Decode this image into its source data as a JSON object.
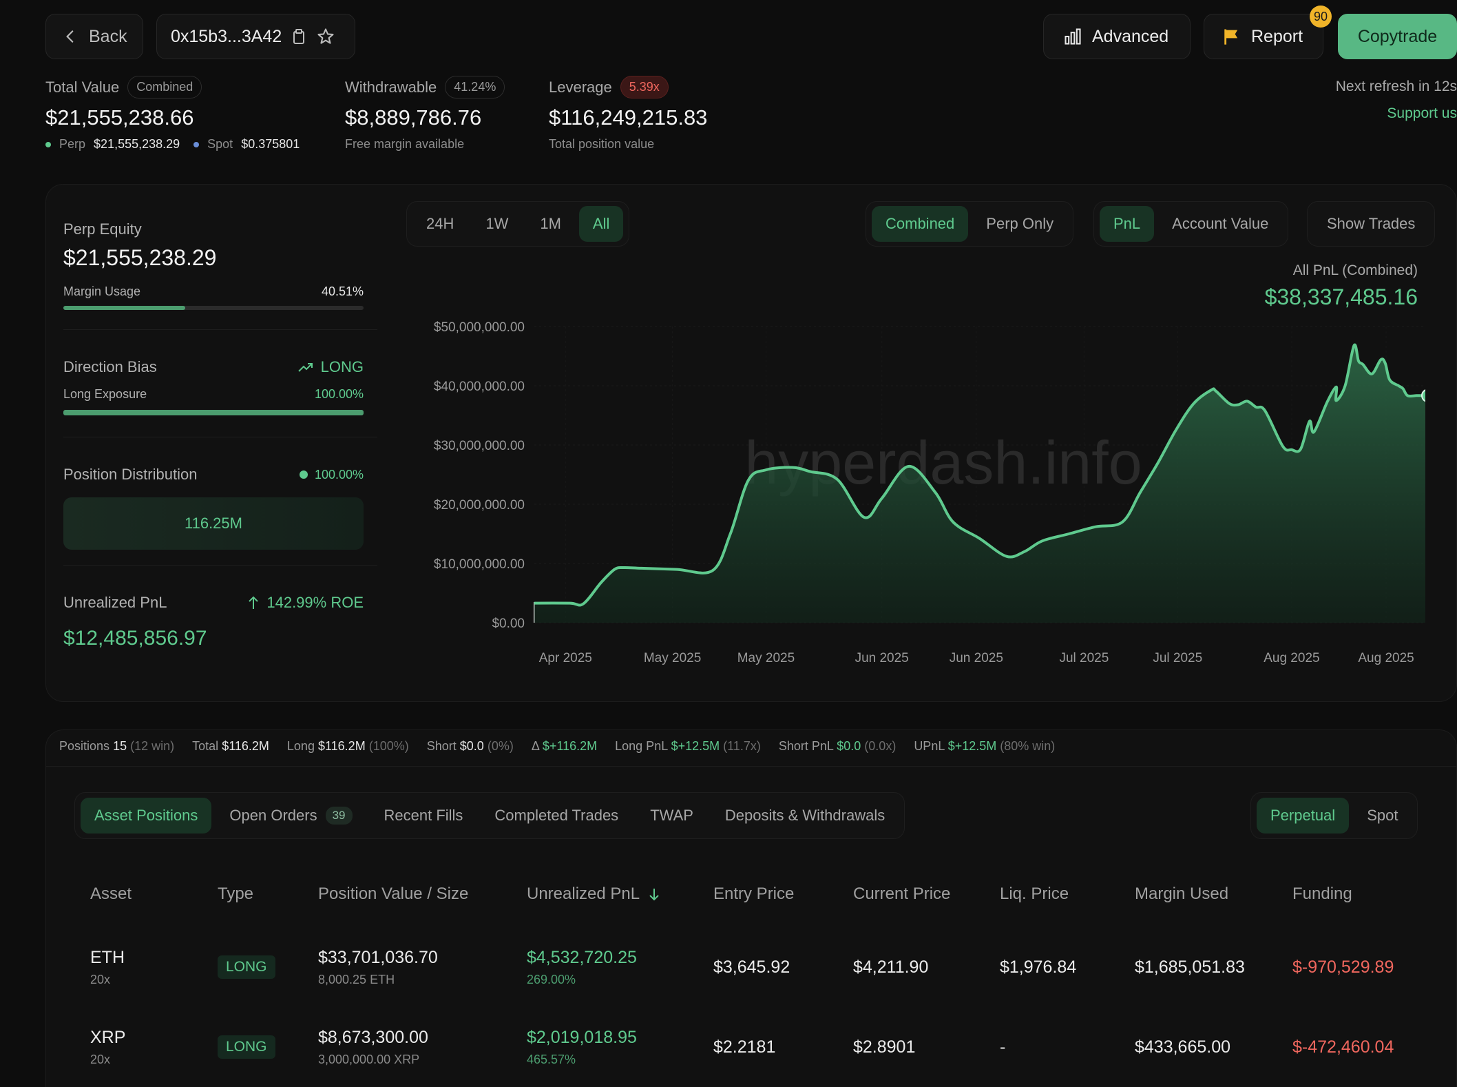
{
  "header": {
    "back_label": "Back",
    "address": "0x15b3...3A42",
    "advanced_label": "Advanced",
    "report_label": "Report",
    "report_count": "90",
    "copytrade_label": "Copytrade",
    "next_refresh": "Next refresh in 12s",
    "support": "Support us"
  },
  "summary": {
    "total_value_label": "Total Value",
    "total_value_tag": "Combined",
    "total_value": "$21,555,238.66",
    "perp_label": "Perp",
    "perp_value": "$21,555,238.29",
    "spot_label": "Spot",
    "spot_value": "$0.375801",
    "withdrawable_label": "Withdrawable",
    "withdrawable_tag": "41.24%",
    "withdrawable_value": "$8,889,786.76",
    "withdrawable_sub": "Free margin available",
    "leverage_label": "Leverage",
    "leverage_tag": "5.39x",
    "leverage_value": "$116,249,215.83",
    "leverage_sub": "Total position value"
  },
  "left": {
    "perp_equity_label": "Perp Equity",
    "perp_equity": "$21,555,238.29",
    "margin_usage_label": "Margin Usage",
    "margin_usage": "40.51%",
    "margin_usage_fraction": 0.4051,
    "direction_label": "Direction Bias",
    "direction_value": "LONG",
    "long_exposure_label": "Long Exposure",
    "long_exposure": "100.00%",
    "long_exposure_fraction": 1.0,
    "distribution_label": "Position Distribution",
    "distribution_pct": "100.00%",
    "distribution_value": "116.25M",
    "upnl_label": "Unrealized PnL",
    "upnl_roe": "142.99% ROE",
    "upnl_value": "$12,485,856.97"
  },
  "chart_controls": {
    "ranges": [
      "24H",
      "1W",
      "1M",
      "All"
    ],
    "active_range": "All",
    "modes": [
      "Combined",
      "Perp Only"
    ],
    "active_mode": "Combined",
    "metrics": [
      "PnL",
      "Account Value"
    ],
    "active_metric": "PnL",
    "show_trades": "Show Trades"
  },
  "chart_header": {
    "label": "All PnL (Combined)",
    "value": "$38,337,485.16",
    "watermark": "hyperdash.info"
  },
  "chart_data": {
    "type": "area",
    "ylim": [
      0,
      50000000
    ],
    "yticks": [
      "$0.00",
      "$10,000,000.00",
      "$20,000,000.00",
      "$30,000,000.00",
      "$40,000,000.00",
      "$50,000,000.00"
    ],
    "xticks": [
      "Apr 2025",
      "May 2025",
      "May 2025",
      "Jun 2025",
      "Jun 2025",
      "Jul 2025",
      "Jul 2025",
      "Aug 2025",
      "Aug 2025"
    ],
    "line_color": "#5fca8e",
    "series": [
      {
        "x": [
          0,
          0.04,
          0.055,
          0.075,
          0.09,
          0.1,
          0.12,
          0.16,
          0.2,
          0.22,
          0.24,
          0.26,
          0.29,
          0.31,
          0.34,
          0.37,
          0.39,
          0.42,
          0.45,
          0.47,
          0.5,
          0.53,
          0.55,
          0.57,
          0.6,
          0.63,
          0.66,
          0.68,
          0.7,
          0.72,
          0.74,
          0.76,
          0.765,
          0.78,
          0.79,
          0.8,
          0.81,
          0.82,
          0.84,
          0.85,
          0.86,
          0.87,
          0.875,
          0.89,
          0.9,
          0.9,
          0.91,
          0.92,
          0.925,
          0.93,
          0.94,
          0.95,
          0.955,
          0.96,
          0.97,
          0.975,
          0.98,
          0.99,
          0.995,
          1.0
        ],
        "y": [
          3300000,
          3300000,
          3200000,
          6800000,
          9000000,
          9300000,
          9200000,
          9000000,
          8800000,
          15000000,
          24000000,
          25800000,
          26200000,
          25500000,
          24200000,
          17800000,
          21000000,
          26400000,
          22000000,
          17000000,
          14200000,
          11200000,
          12000000,
          13800000,
          15000000,
          16200000,
          17000000,
          22000000,
          27000000,
          32500000,
          37000000,
          39300000,
          39100000,
          37000000,
          36800000,
          37400000,
          36400000,
          35800000,
          29800000,
          29200000,
          29300000,
          34000000,
          32200000,
          37300000,
          39800000,
          37500000,
          40000000,
          46800000,
          44200000,
          43600000,
          42000000,
          44400000,
          43800000,
          41000000,
          40000000,
          39500000,
          38337485,
          38337485,
          38337485,
          38337485
        ]
      }
    ]
  },
  "positions_stats": {
    "positions_label": "Positions",
    "positions_value": "15",
    "positions_sub": "(12 win)",
    "total_label": "Total",
    "total_value": "$116.2M",
    "long_label": "Long",
    "long_value": "$116.2M",
    "long_sub": "(100%)",
    "short_label": "Short",
    "short_value": "$0.0",
    "short_sub": "(0%)",
    "delta_label": "Δ",
    "delta_value": "$+116.2M",
    "long_pnl_label": "Long PnL",
    "long_pnl_value": "$+12.5M",
    "long_pnl_sub": "(11.7x)",
    "short_pnl_label": "Short PnL",
    "short_pnl_value": "$0.0",
    "short_pnl_sub": "(0.0x)",
    "upnl_label": "UPnL",
    "upnl_value": "$+12.5M",
    "upnl_sub": "(80% win)"
  },
  "tabs": {
    "items": [
      "Asset Positions",
      "Open Orders",
      "Recent Fills",
      "Completed Trades",
      "TWAP",
      "Deposits & Withdrawals"
    ],
    "open_orders_count": "39",
    "active": "Asset Positions",
    "market_types": [
      "Perpetual",
      "Spot"
    ],
    "active_market": "Perpetual"
  },
  "table": {
    "columns": [
      "Asset",
      "Type",
      "Position Value / Size",
      "Unrealized PnL",
      "Entry Price",
      "Current Price",
      "Liq. Price",
      "Margin Used",
      "Funding"
    ],
    "rows": [
      {
        "asset": "ETH",
        "leverage": "20x",
        "type": "LONG",
        "value": "$33,701,036.70",
        "size": "8,000.25 ETH",
        "pnl": "$4,532,720.25",
        "pnl_pct": "269.00%",
        "entry": "$3,645.92",
        "current": "$4,211.90",
        "liq": "$1,976.84",
        "margin": "$1,685,051.83",
        "funding": "$-970,529.89"
      },
      {
        "asset": "XRP",
        "leverage": "20x",
        "type": "LONG",
        "value": "$8,673,300.00",
        "size": "3,000,000.00 XRP",
        "pnl": "$2,019,018.95",
        "pnl_pct": "465.57%",
        "entry": "$2.2181",
        "current": "$2.8901",
        "liq": "-",
        "margin": "$433,665.00",
        "funding": "$-472,460.04"
      }
    ]
  }
}
